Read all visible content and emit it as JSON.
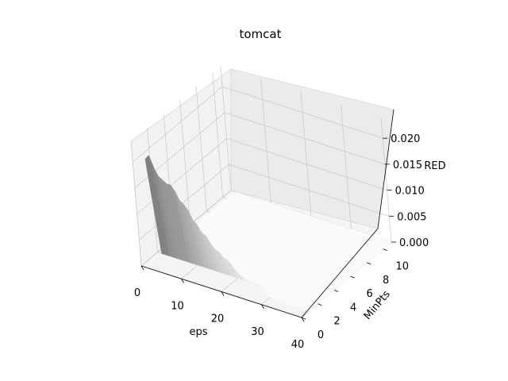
{
  "chart_data": {
    "type": "surface3d",
    "title": "tomcat",
    "xlabel": "eps",
    "ylabel": "MinPts",
    "zlabel": "RED",
    "xticks": [
      "0",
      "10",
      "20",
      "30",
      "40"
    ],
    "yticks": [
      "0",
      "2",
      "4",
      "6",
      "8",
      "10"
    ],
    "zticks": [
      "0.000",
      "0.005",
      "0.010",
      "0.015",
      "0.020"
    ],
    "xlim": [
      0,
      40
    ],
    "ylim": [
      0,
      11
    ],
    "zlim": [
      0,
      0.024
    ],
    "grid": true,
    "colormap": "greys",
    "description_note": "",
    "surface": {
      "eps": [
        1,
        2,
        3,
        4,
        5,
        6,
        7,
        8,
        9,
        10,
        11,
        12,
        13,
        14,
        15,
        16,
        17,
        18,
        19,
        20,
        21,
        22,
        23,
        24,
        25,
        26,
        27,
        28,
        29,
        30,
        31,
        32,
        33,
        34,
        35,
        36,
        37,
        38,
        39,
        40
      ],
      "minpts": [
        1,
        2,
        3,
        4,
        5,
        6,
        7,
        8,
        9,
        10,
        11
      ],
      "red_at_minpts_1": [
        0.0195,
        0.0205,
        0.0185,
        0.017,
        0.0165,
        0.016,
        0.016,
        0.015,
        0.0135,
        0.013,
        0.012,
        0.0105,
        0.0098,
        0.0085,
        0.0082,
        0.007,
        0.0062,
        0.0058,
        0.005,
        0.0048,
        0.004,
        0.0032,
        0.0025,
        0.0018,
        0.0012,
        0.0009,
        0.0006,
        0.0004,
        0.0003,
        0.0002,
        0.0001,
        0.0001,
        0.0,
        0.0,
        0.0,
        0.0,
        0.0,
        0.0,
        0.0,
        0.0
      ]
    }
  }
}
